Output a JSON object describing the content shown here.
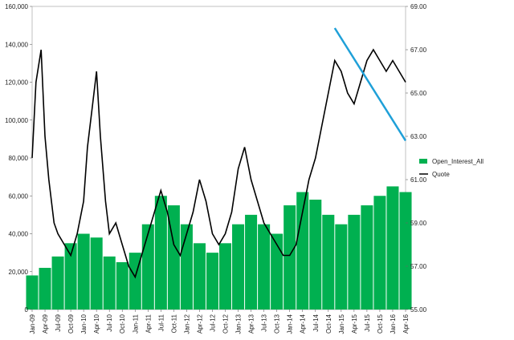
{
  "chart_data": {
    "type": "bar+line",
    "title": "",
    "x_ticks": [
      "Jan-09",
      "Apr-09",
      "Jul-09",
      "Oct-09",
      "Jan-10",
      "Apr-10",
      "Jul-10",
      "Oct-10",
      "Jan-11",
      "Apr-11",
      "Jul-11",
      "Oct-11",
      "Jan-12",
      "Apr-12",
      "Jul-12",
      "Oct-12",
      "Jan-13",
      "Apr-13",
      "Jul-13",
      "Oct-13",
      "Jan-14",
      "Apr-14",
      "Jul-14",
      "Oct-14",
      "Jan-15",
      "Apr-15",
      "Jul-15",
      "Oct-15",
      "Jan-16",
      "Apr-16"
    ],
    "left_axis": {
      "ylim": [
        0,
        160000
      ],
      "ticks": [
        "0",
        "20,000",
        "40,000",
        "60,000",
        "80,000",
        "100,000",
        "120,000",
        "140,000",
        "160,000"
      ]
    },
    "right_axis": {
      "ylim": [
        55,
        69
      ],
      "ticks": [
        "55.00",
        "57.00",
        "59.00",
        "61.00",
        "63.00",
        "65.00",
        "67.00",
        "69.00"
      ]
    },
    "series": [
      {
        "name": "Open_Interest_All",
        "kind": "area-bars",
        "axis": "left",
        "color": "#00b050",
        "points": [
          [
            0,
            18000
          ],
          [
            1,
            22000
          ],
          [
            2,
            28000
          ],
          [
            3,
            35000
          ],
          [
            4,
            40000
          ],
          [
            5,
            38000
          ],
          [
            6,
            28000
          ],
          [
            7,
            25000
          ],
          [
            8,
            30000
          ],
          [
            9,
            45000
          ],
          [
            10,
            60000
          ],
          [
            11,
            55000
          ],
          [
            12,
            45000
          ],
          [
            13,
            35000
          ],
          [
            14,
            30000
          ],
          [
            15,
            35000
          ],
          [
            16,
            45000
          ],
          [
            17,
            50000
          ],
          [
            18,
            45000
          ],
          [
            19,
            40000
          ],
          [
            20,
            55000
          ],
          [
            21,
            62000
          ],
          [
            22,
            58000
          ],
          [
            23,
            50000
          ],
          [
            24,
            45000
          ],
          [
            25,
            50000
          ],
          [
            26,
            55000
          ],
          [
            27,
            60000
          ],
          [
            28,
            65000
          ],
          [
            29,
            62000
          ]
        ]
      },
      {
        "name": "Quote",
        "kind": "line",
        "axis": "right",
        "color": "#000000",
        "points": [
          [
            0,
            62.0
          ],
          [
            0.3,
            65.5
          ],
          [
            0.7,
            67.0
          ],
          [
            1.0,
            63.0
          ],
          [
            1.3,
            61.0
          ],
          [
            1.7,
            59.0
          ],
          [
            2.0,
            58.5
          ],
          [
            2.5,
            58.0
          ],
          [
            3.0,
            57.5
          ],
          [
            3.5,
            58.5
          ],
          [
            4.0,
            60.0
          ],
          [
            4.3,
            62.5
          ],
          [
            4.7,
            64.5
          ],
          [
            5.0,
            66.0
          ],
          [
            5.3,
            63.0
          ],
          [
            5.7,
            60.0
          ],
          [
            6.0,
            58.5
          ],
          [
            6.5,
            59.0
          ],
          [
            7.0,
            58.0
          ],
          [
            7.5,
            57.0
          ],
          [
            8.0,
            56.5
          ],
          [
            8.5,
            57.5
          ],
          [
            9.0,
            58.5
          ],
          [
            9.5,
            59.5
          ],
          [
            10.0,
            60.5
          ],
          [
            10.5,
            59.5
          ],
          [
            11.0,
            58.0
          ],
          [
            11.5,
            57.5
          ],
          [
            12.0,
            58.5
          ],
          [
            12.5,
            59.5
          ],
          [
            13.0,
            61.0
          ],
          [
            13.5,
            60.0
          ],
          [
            14.0,
            58.5
          ],
          [
            14.5,
            58.0
          ],
          [
            15.0,
            58.5
          ],
          [
            15.5,
            59.5
          ],
          [
            16.0,
            61.5
          ],
          [
            16.5,
            62.5
          ],
          [
            17.0,
            61.0
          ],
          [
            17.5,
            60.0
          ],
          [
            18.0,
            59.0
          ],
          [
            18.5,
            58.5
          ],
          [
            19.0,
            58.0
          ],
          [
            19.5,
            57.5
          ],
          [
            20.0,
            57.5
          ],
          [
            20.5,
            58.0
          ],
          [
            21.0,
            59.5
          ],
          [
            21.5,
            61.0
          ],
          [
            22.0,
            62.0
          ],
          [
            22.5,
            63.5
          ],
          [
            23.0,
            65.0
          ],
          [
            23.5,
            66.5
          ],
          [
            24.0,
            66.0
          ],
          [
            24.5,
            65.0
          ],
          [
            25.0,
            64.5
          ],
          [
            25.5,
            65.5
          ],
          [
            26.0,
            66.5
          ],
          [
            26.5,
            67.0
          ],
          [
            27.0,
            66.5
          ],
          [
            27.5,
            66.0
          ],
          [
            28.0,
            66.5
          ],
          [
            28.5,
            66.0
          ],
          [
            29.0,
            65.5
          ]
        ]
      }
    ],
    "trendline": {
      "color": "#1fa0d8",
      "from": [
        23.5,
        68.0
      ],
      "to": [
        29.0,
        62.8
      ],
      "axis": "right"
    },
    "legend": {
      "placement": "right"
    }
  }
}
